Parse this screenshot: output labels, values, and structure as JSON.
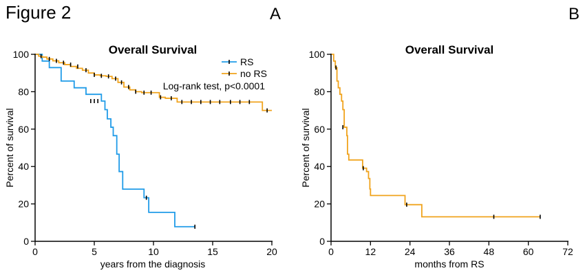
{
  "figure": {
    "title": "Figure 2"
  },
  "colors": {
    "rs": "#1f9be8",
    "no_rs": "#f0a31c",
    "axis": "#000000",
    "censor": "#000000"
  },
  "chart_data": [
    {
      "panel": "A",
      "type": "line",
      "step": true,
      "title": "Overall Survival",
      "xlabel": "years from the diagnosis",
      "ylabel": "Percent of survival",
      "xlim": [
        0,
        20
      ],
      "ylim": [
        0,
        100
      ],
      "xticks": [
        0,
        5,
        10,
        15,
        20
      ],
      "yticks": [
        0,
        20,
        40,
        60,
        80,
        100
      ],
      "legend_position": "top-right",
      "annotation": "Log-rank test, p<0.0001",
      "series": [
        {
          "name": "RS",
          "color_key": "rs",
          "x": [
            0,
            0.6,
            1.2,
            2.2,
            3.3,
            4.3,
            5.6,
            5.9,
            6.1,
            6.4,
            6.6,
            6.9,
            7.1,
            7.4,
            7.7,
            9.2,
            9.6,
            11.8,
            13.5
          ],
          "y": [
            100,
            96.4,
            92.9,
            85.7,
            82.1,
            78.6,
            75.0,
            70.4,
            65.5,
            61.0,
            56.5,
            46.6,
            37.3,
            27.9,
            27.9,
            23.3,
            15.5,
            7.8,
            7.8
          ],
          "censor_x": [
            4.7,
            5.0,
            5.3,
            9.4,
            13.5
          ],
          "censor_y": [
            75.0,
            75.0,
            75.0,
            23.3,
            7.8
          ]
        },
        {
          "name": "no RS",
          "color_key": "no_rs",
          "x": [
            0,
            0.3,
            0.6,
            1.0,
            1.5,
            2.0,
            2.5,
            3.0,
            3.5,
            4.0,
            4.5,
            5.0,
            5.5,
            6.0,
            6.5,
            7.0,
            7.5,
            8.0,
            8.5,
            9.0,
            10.0,
            10.5,
            11.0,
            12.0,
            19.2,
            20.0
          ],
          "y": [
            100,
            99,
            98.5,
            97.5,
            96.5,
            95.5,
            94.5,
            93.5,
            92.5,
            91.5,
            90,
            89,
            88.5,
            88.2,
            87,
            85,
            82.5,
            81,
            80,
            79.5,
            79.5,
            77,
            76.5,
            74.5,
            70,
            70
          ],
          "censor_x": [
            0.5,
            1.2,
            1.8,
            2.4,
            3.0,
            3.6,
            4.3,
            5.0,
            5.6,
            6.2,
            6.8,
            7.3,
            7.9,
            8.5,
            9.2,
            9.8,
            10.6,
            11.5,
            12.4,
            13.2,
            14.0,
            14.8,
            15.6,
            16.5,
            17.3,
            18.1,
            19.6
          ],
          "censor_y": [
            99,
            97.5,
            96.5,
            95.5,
            94.5,
            93.5,
            91.5,
            89,
            88.5,
            88.2,
            87,
            85,
            82.5,
            80,
            79.5,
            79.5,
            77,
            76.5,
            74.5,
            74.5,
            74.5,
            74.5,
            74.5,
            74.5,
            74.5,
            74.5,
            70
          ]
        }
      ]
    },
    {
      "panel": "B",
      "type": "line",
      "step": true,
      "title": "Overall Survival",
      "xlabel": "months from RS",
      "ylabel": "Percent of survival",
      "xlim": [
        0,
        72
      ],
      "ylim": [
        0,
        100
      ],
      "xticks": [
        0,
        12,
        24,
        36,
        48,
        60,
        72
      ],
      "yticks": [
        0,
        20,
        40,
        60,
        80,
        100
      ],
      "series": [
        {
          "name": "",
          "color_key": "no_rs",
          "x": [
            0,
            0.8,
            1.3,
            1.8,
            2.2,
            2.7,
            3.2,
            3.6,
            4.0,
            4.5,
            4.8,
            5.0,
            5.4,
            9.6,
            10.8,
            11.4,
            11.8,
            12.0,
            22.5,
            27.6,
            63.6
          ],
          "y": [
            100,
            96.4,
            92.9,
            85.7,
            82.1,
            78.6,
            75.0,
            70.4,
            61.0,
            61.0,
            56.5,
            46.6,
            43.5,
            39.1,
            37.3,
            33.6,
            28.0,
            24.5,
            19.6,
            13.1,
            13.1
          ],
          "censor_x": [
            1.5,
            3.6,
            9.8,
            23.0,
            49.5,
            63.6
          ],
          "censor_y": [
            92.9,
            61.0,
            39.1,
            19.6,
            13.1,
            13.1
          ]
        }
      ]
    }
  ]
}
